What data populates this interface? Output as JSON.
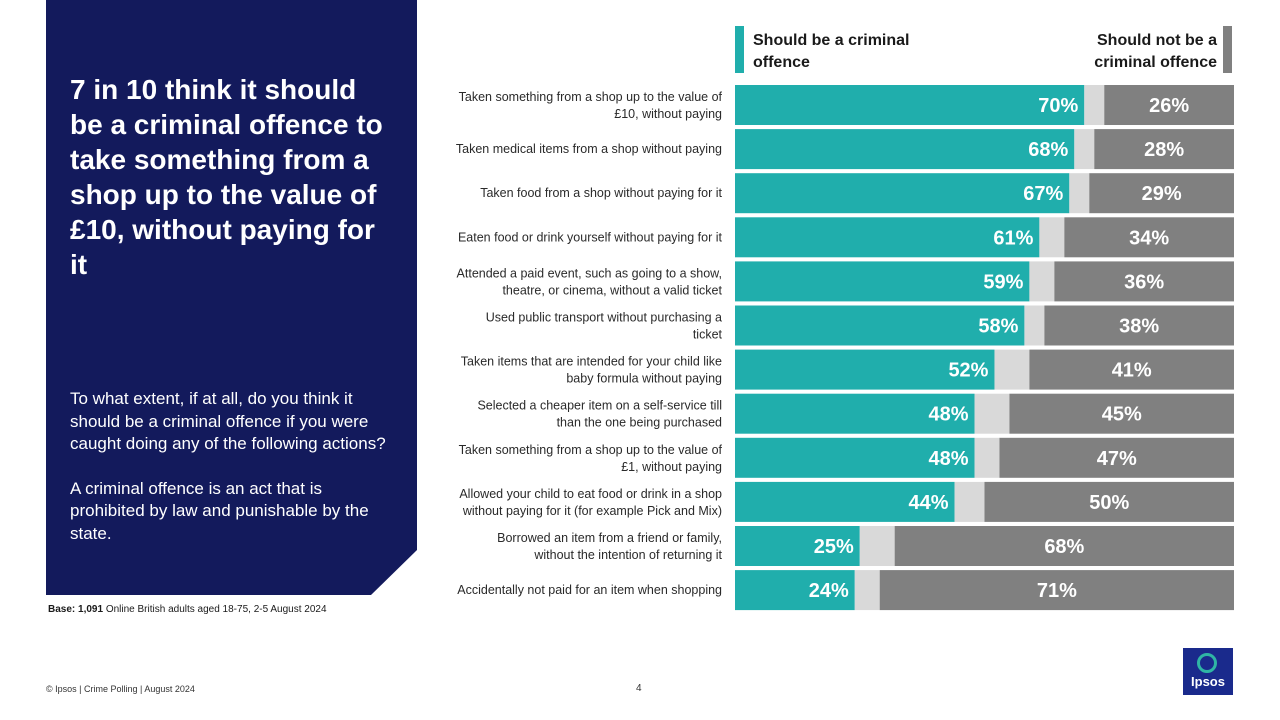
{
  "headline": "7 in 10 think it should be a criminal offence to take something from a shop up to the value of £10, without paying for it",
  "question": {
    "line1": "To what extent, if at all, do you think it should be a criminal offence if you were caught doing any of the following actions?",
    "line2": "A criminal offence is an act that is prohibited by law and punishable by the state."
  },
  "base": {
    "label": "Base: 1,091",
    "text": " Online British adults aged 18-75, 2-5 August 2024"
  },
  "footer": {
    "left": "© Ipsos | Crime  Polling | August 2024",
    "page": "4"
  },
  "logo": {
    "text": "Ipsos"
  },
  "colors": {
    "should": "#20aeac",
    "neutral": "#d9d9d9",
    "should_not": "#808080",
    "panel": "#131a5c"
  },
  "chart_data": {
    "type": "bar",
    "orientation": "horizontal-stacked",
    "xlim": [
      0,
      100
    ],
    "legend": {
      "should": "Should be a criminal offence",
      "should_not": "Should not be a criminal offence"
    },
    "categories": [
      [
        "Taken something from a shop up to the value of",
        "£10, without paying"
      ],
      [
        "Taken medical items from a shop without paying"
      ],
      [
        "Taken food from a shop without paying for it"
      ],
      [
        "Eaten food or drink yourself without paying for it"
      ],
      [
        "Attended a paid event, such as going to a show,",
        "theatre, or cinema, without a valid ticket"
      ],
      [
        "Used public transport without purchasing a",
        "ticket"
      ],
      [
        "Taken items that are intended for your child like",
        "baby formula without paying"
      ],
      [
        "Selected a cheaper item on a self-service till",
        "than the one being purchased"
      ],
      [
        "Taken something from a shop up to the value of",
        "£1, without paying"
      ],
      [
        "Allowed your child to eat food or drink in a shop",
        "without paying for it (for example Pick and Mix)"
      ],
      [
        "Borrowed an item from a friend or family,",
        "without the intention of returning it"
      ],
      [
        "Accidentally not paid for an item when shopping"
      ]
    ],
    "series": [
      {
        "name": "Should be a criminal offence",
        "values": [
          70,
          68,
          67,
          61,
          59,
          58,
          52,
          48,
          48,
          44,
          25,
          24
        ]
      },
      {
        "name": "Should not be a criminal offence",
        "values": [
          26,
          28,
          29,
          34,
          36,
          38,
          41,
          45,
          47,
          50,
          68,
          71
        ]
      }
    ]
  }
}
